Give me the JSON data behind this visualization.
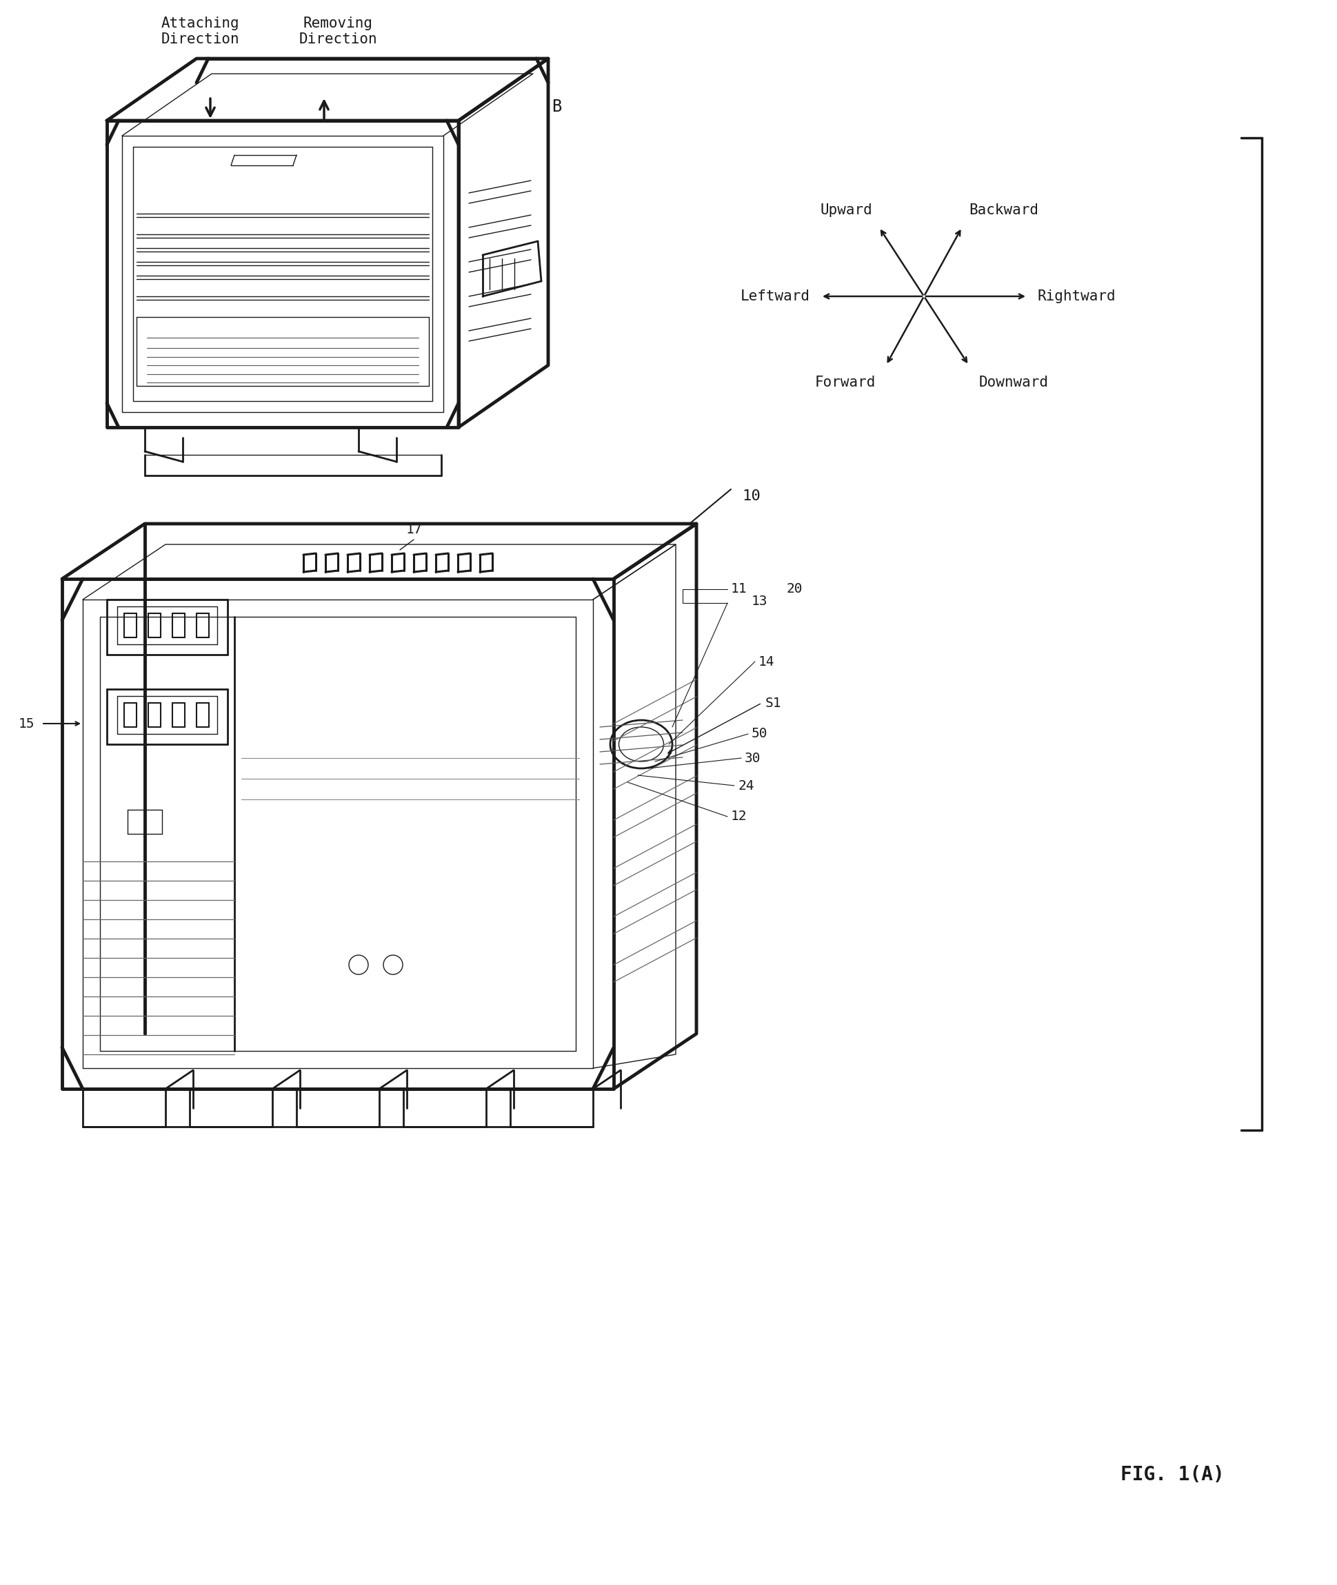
{
  "fig_label": "FIG. 1(A)",
  "background_color": "#ffffff",
  "line_color": "#1a1a1a",
  "label_B": "B",
  "label_10": "10",
  "label_17": "17",
  "label_15": "15",
  "label_11": "11",
  "label_13": "13",
  "label_20": "20",
  "label_14": "14",
  "label_S1": "S1",
  "label_50": "50",
  "label_30": "30",
  "label_24": "24",
  "label_12": "12",
  "attaching_direction": "Attaching\nDirection",
  "removing_direction": "Removing\nDirection",
  "upward": "Upward",
  "backward": "Backward",
  "leftward": "Leftward",
  "rightward": "Rightward",
  "forward": "Forward",
  "downward": "Downward",
  "font_size_labels": 13,
  "font_size_direction": 15,
  "font_size_fig": 20,
  "font_size_numbers": 14,
  "font_family": "DejaVu Sans"
}
